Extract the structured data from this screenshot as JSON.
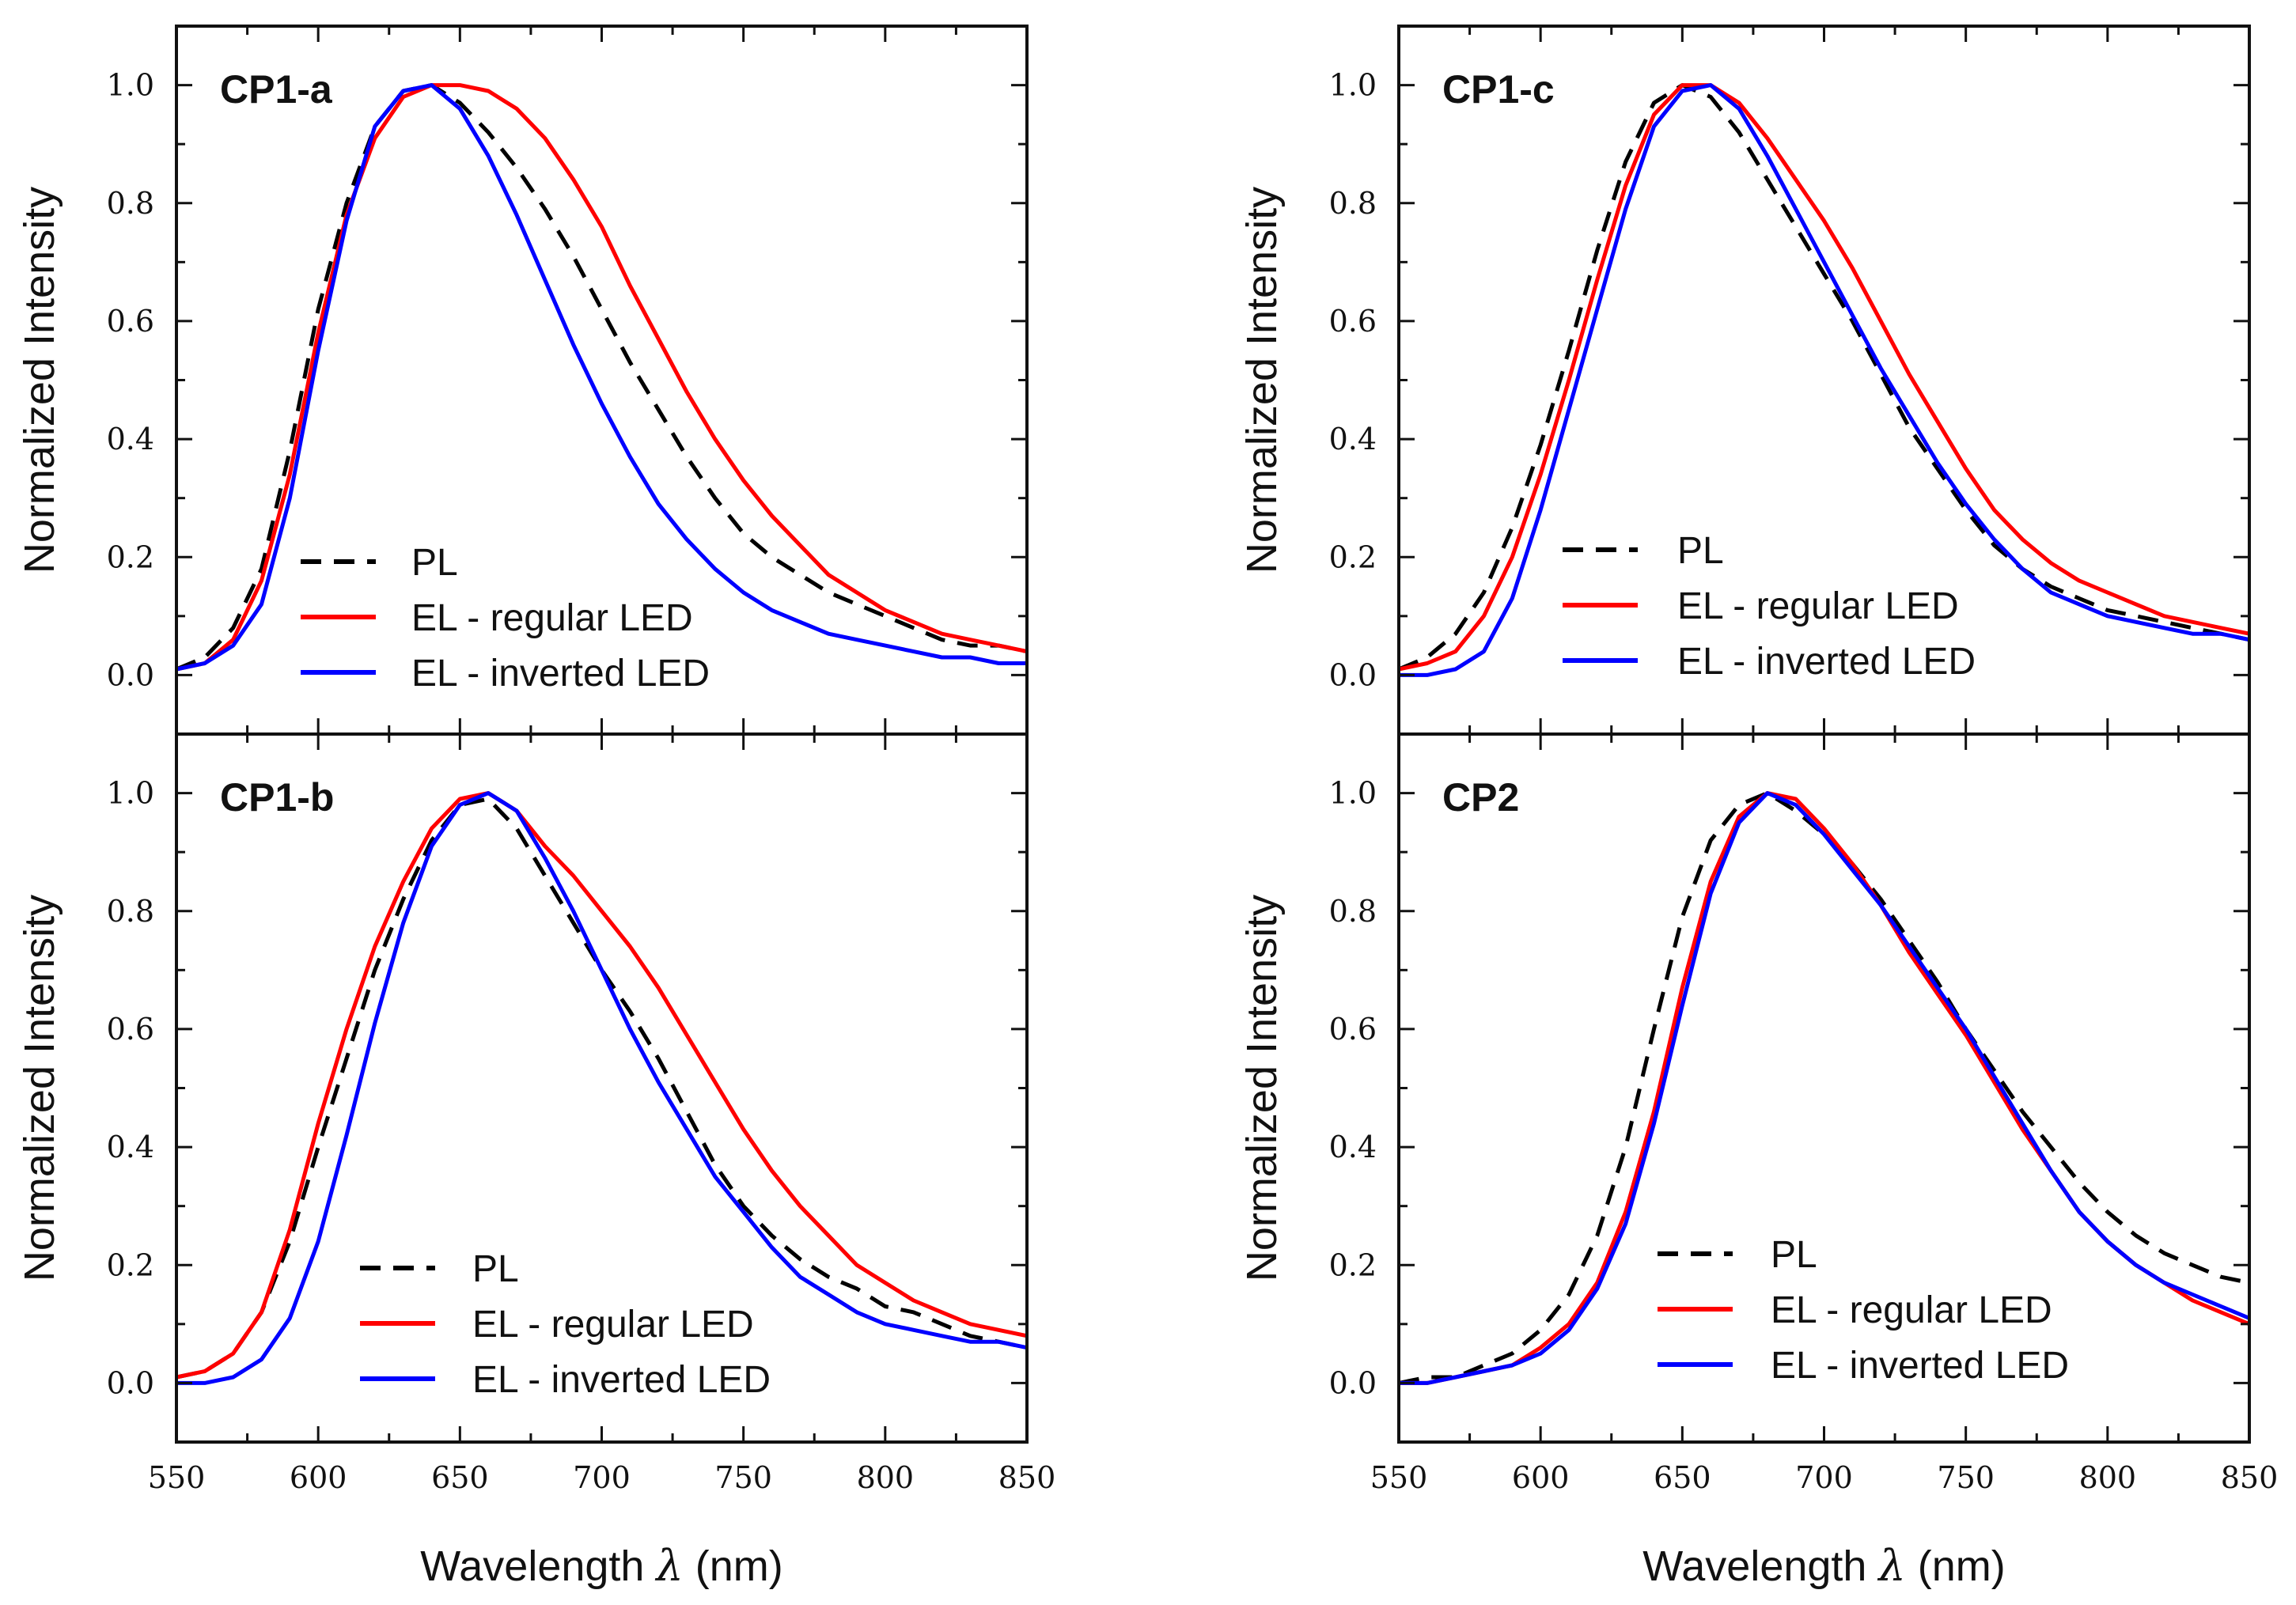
{
  "figure": {
    "x_axis_title_prefix": "Wavelength ",
    "x_axis_symbol": "λ",
    "x_axis_unit": " (nm)",
    "y_axis_title": "Normalized Intensity"
  },
  "chart_data": [
    {
      "type": "line",
      "panel": "CP1-a",
      "title": "CP1-a",
      "xlabel": "Wavelength λ (nm)",
      "ylabel": "Normalized Intensity",
      "xlim": [
        550,
        850
      ],
      "ylim": [
        -0.1,
        1.1
      ],
      "xticks": [
        550,
        600,
        650,
        700,
        750,
        800,
        850
      ],
      "xticklabels": [
        "550",
        "600",
        "650",
        "700",
        "750",
        "800",
        "850"
      ],
      "yticks": [
        0.0,
        0.2,
        0.4,
        0.6,
        0.8,
        1.0
      ],
      "yticklabels": [
        "0.0",
        "0.2",
        "0.4",
        "0.6",
        "0.8",
        "1.0"
      ],
      "legend_position": "lower-center",
      "series": [
        {
          "name": "PL",
          "color": "#000000",
          "dash": "dashed",
          "x": [
            550,
            560,
            570,
            580,
            590,
            600,
            610,
            620,
            630,
            640,
            650,
            660,
            670,
            680,
            690,
            700,
            710,
            720,
            730,
            740,
            750,
            760,
            770,
            780,
            790,
            800,
            810,
            820,
            830,
            840,
            850
          ],
          "y": [
            0.01,
            0.03,
            0.08,
            0.18,
            0.38,
            0.62,
            0.8,
            0.93,
            0.99,
            1.0,
            0.97,
            0.92,
            0.86,
            0.79,
            0.71,
            0.62,
            0.53,
            0.45,
            0.37,
            0.3,
            0.24,
            0.2,
            0.17,
            0.14,
            0.12,
            0.1,
            0.08,
            0.06,
            0.05,
            0.05,
            0.04
          ]
        },
        {
          "name": "EL - regular LED",
          "color": "#ff0000",
          "dash": "solid",
          "x": [
            550,
            560,
            570,
            580,
            590,
            600,
            610,
            620,
            630,
            640,
            650,
            660,
            670,
            680,
            690,
            700,
            710,
            720,
            730,
            740,
            750,
            760,
            770,
            780,
            790,
            800,
            810,
            820,
            830,
            840,
            850
          ],
          "y": [
            0.01,
            0.02,
            0.06,
            0.16,
            0.34,
            0.58,
            0.78,
            0.91,
            0.98,
            1.0,
            1.0,
            0.99,
            0.96,
            0.91,
            0.84,
            0.76,
            0.66,
            0.57,
            0.48,
            0.4,
            0.33,
            0.27,
            0.22,
            0.17,
            0.14,
            0.11,
            0.09,
            0.07,
            0.06,
            0.05,
            0.04
          ]
        },
        {
          "name": "EL - inverted LED",
          "color": "#0000ff",
          "dash": "solid",
          "x": [
            550,
            560,
            570,
            580,
            590,
            600,
            610,
            620,
            630,
            640,
            650,
            660,
            670,
            680,
            690,
            700,
            710,
            720,
            730,
            740,
            750,
            760,
            770,
            780,
            790,
            800,
            810,
            820,
            830,
            840,
            850
          ],
          "y": [
            0.01,
            0.02,
            0.05,
            0.12,
            0.3,
            0.55,
            0.77,
            0.93,
            0.99,
            1.0,
            0.96,
            0.88,
            0.78,
            0.67,
            0.56,
            0.46,
            0.37,
            0.29,
            0.23,
            0.18,
            0.14,
            0.11,
            0.09,
            0.07,
            0.06,
            0.05,
            0.04,
            0.03,
            0.03,
            0.02,
            0.02
          ]
        }
      ]
    },
    {
      "type": "line",
      "panel": "CP1-b",
      "title": "CP1-b",
      "xlabel": "Wavelength λ (nm)",
      "ylabel": "Normalized Intensity",
      "xlim": [
        550,
        850
      ],
      "ylim": [
        -0.1,
        1.1
      ],
      "xticks": [
        550,
        600,
        650,
        700,
        750,
        800,
        850
      ],
      "xticklabels": [
        "550",
        "600",
        "650",
        "700",
        "750",
        "800",
        "850"
      ],
      "yticks": [
        0.0,
        0.2,
        0.4,
        0.6,
        0.8,
        1.0
      ],
      "yticklabels": [
        "0.0",
        "0.2",
        "0.4",
        "0.6",
        "0.8",
        "1.0"
      ],
      "legend_position": "lower-center",
      "series": [
        {
          "name": "PL",
          "color": "#000000",
          "dash": "dashed",
          "x": [
            550,
            560,
            570,
            580,
            590,
            600,
            610,
            620,
            630,
            640,
            650,
            660,
            670,
            680,
            690,
            700,
            710,
            720,
            730,
            740,
            750,
            760,
            770,
            780,
            790,
            800,
            810,
            820,
            830,
            840,
            850
          ],
          "y": [
            0.01,
            0.02,
            0.05,
            0.12,
            0.24,
            0.4,
            0.55,
            0.7,
            0.82,
            0.92,
            0.98,
            0.99,
            0.94,
            0.86,
            0.78,
            0.7,
            0.63,
            0.55,
            0.46,
            0.37,
            0.3,
            0.25,
            0.21,
            0.18,
            0.16,
            0.13,
            0.12,
            0.1,
            0.08,
            0.07,
            0.06
          ]
        },
        {
          "name": "EL - regular LED",
          "color": "#ff0000",
          "dash": "solid",
          "x": [
            550,
            560,
            570,
            580,
            590,
            600,
            610,
            620,
            630,
            640,
            650,
            660,
            670,
            680,
            690,
            700,
            710,
            720,
            730,
            740,
            750,
            760,
            770,
            780,
            790,
            800,
            810,
            820,
            830,
            840,
            850
          ],
          "y": [
            0.01,
            0.02,
            0.05,
            0.12,
            0.26,
            0.44,
            0.6,
            0.74,
            0.85,
            0.94,
            0.99,
            1.0,
            0.97,
            0.91,
            0.86,
            0.8,
            0.74,
            0.67,
            0.59,
            0.51,
            0.43,
            0.36,
            0.3,
            0.25,
            0.2,
            0.17,
            0.14,
            0.12,
            0.1,
            0.09,
            0.08
          ]
        },
        {
          "name": "EL - inverted LED",
          "color": "#0000ff",
          "dash": "solid",
          "x": [
            550,
            560,
            570,
            580,
            590,
            600,
            610,
            620,
            630,
            640,
            650,
            660,
            670,
            680,
            690,
            700,
            710,
            720,
            730,
            740,
            750,
            760,
            770,
            780,
            790,
            800,
            810,
            820,
            830,
            840,
            850
          ],
          "y": [
            0.0,
            0.0,
            0.01,
            0.04,
            0.11,
            0.24,
            0.42,
            0.61,
            0.78,
            0.91,
            0.98,
            1.0,
            0.97,
            0.89,
            0.8,
            0.7,
            0.6,
            0.51,
            0.43,
            0.35,
            0.29,
            0.23,
            0.18,
            0.15,
            0.12,
            0.1,
            0.09,
            0.08,
            0.07,
            0.07,
            0.06
          ]
        }
      ]
    },
    {
      "type": "line",
      "panel": "CP1-c",
      "title": "CP1-c",
      "xlabel": "Wavelength λ (nm)",
      "ylabel": "Normalized Intensity",
      "xlim": [
        550,
        850
      ],
      "ylim": [
        -0.1,
        1.1
      ],
      "xticks": [
        550,
        600,
        650,
        700,
        750,
        800,
        850
      ],
      "xticklabels": [
        "550",
        "600",
        "650",
        "700",
        "750",
        "800",
        "850"
      ],
      "yticks": [
        0.0,
        0.2,
        0.4,
        0.6,
        0.8,
        1.0
      ],
      "yticklabels": [
        "0.0",
        "0.2",
        "0.4",
        "0.6",
        "0.8",
        "1.0"
      ],
      "legend_position": "lower-center",
      "series": [
        {
          "name": "PL",
          "color": "#000000",
          "dash": "dashed",
          "x": [
            550,
            560,
            570,
            580,
            590,
            600,
            610,
            620,
            630,
            640,
            650,
            660,
            670,
            680,
            690,
            700,
            710,
            720,
            730,
            740,
            750,
            760,
            770,
            780,
            790,
            800,
            810,
            820,
            830,
            840,
            850
          ],
          "y": [
            0.01,
            0.03,
            0.07,
            0.14,
            0.25,
            0.39,
            0.55,
            0.72,
            0.87,
            0.97,
            1.0,
            0.98,
            0.92,
            0.84,
            0.76,
            0.68,
            0.6,
            0.51,
            0.42,
            0.35,
            0.28,
            0.22,
            0.18,
            0.15,
            0.13,
            0.11,
            0.1,
            0.09,
            0.08,
            0.07,
            0.06
          ]
        },
        {
          "name": "EL - regular LED",
          "color": "#ff0000",
          "dash": "solid",
          "x": [
            550,
            560,
            570,
            580,
            590,
            600,
            610,
            620,
            630,
            640,
            650,
            660,
            670,
            680,
            690,
            700,
            710,
            720,
            730,
            740,
            750,
            760,
            770,
            780,
            790,
            800,
            810,
            820,
            830,
            840,
            850
          ],
          "y": [
            0.01,
            0.02,
            0.04,
            0.1,
            0.2,
            0.34,
            0.5,
            0.67,
            0.83,
            0.95,
            1.0,
            1.0,
            0.97,
            0.91,
            0.84,
            0.77,
            0.69,
            0.6,
            0.51,
            0.43,
            0.35,
            0.28,
            0.23,
            0.19,
            0.16,
            0.14,
            0.12,
            0.1,
            0.09,
            0.08,
            0.07
          ]
        },
        {
          "name": "EL - inverted LED",
          "color": "#0000ff",
          "dash": "solid",
          "x": [
            550,
            560,
            570,
            580,
            590,
            600,
            610,
            620,
            630,
            640,
            650,
            660,
            670,
            680,
            690,
            700,
            710,
            720,
            730,
            740,
            750,
            760,
            770,
            780,
            790,
            800,
            810,
            820,
            830,
            840,
            850
          ],
          "y": [
            0.0,
            0.0,
            0.01,
            0.04,
            0.13,
            0.28,
            0.45,
            0.62,
            0.79,
            0.93,
            0.99,
            1.0,
            0.96,
            0.88,
            0.79,
            0.7,
            0.61,
            0.52,
            0.44,
            0.36,
            0.29,
            0.23,
            0.18,
            0.14,
            0.12,
            0.1,
            0.09,
            0.08,
            0.07,
            0.07,
            0.06
          ]
        }
      ]
    },
    {
      "type": "line",
      "panel": "CP2",
      "title": "CP2",
      "xlabel": "Wavelength λ (nm)",
      "ylabel": "Normalized Intensity",
      "xlim": [
        550,
        850
      ],
      "ylim": [
        -0.1,
        1.1
      ],
      "xticks": [
        550,
        600,
        650,
        700,
        750,
        800,
        850
      ],
      "xticklabels": [
        "550",
        "600",
        "650",
        "700",
        "750",
        "800",
        "850"
      ],
      "yticks": [
        0.0,
        0.2,
        0.4,
        0.6,
        0.8,
        1.0
      ],
      "yticklabels": [
        "0.0",
        "0.2",
        "0.4",
        "0.6",
        "0.8",
        "1.0"
      ],
      "legend_position": "lower-center",
      "series": [
        {
          "name": "PL",
          "color": "#000000",
          "dash": "dashed",
          "x": [
            550,
            560,
            570,
            580,
            590,
            600,
            610,
            620,
            630,
            640,
            650,
            660,
            670,
            680,
            690,
            700,
            710,
            720,
            730,
            740,
            750,
            760,
            770,
            780,
            790,
            800,
            810,
            820,
            830,
            840,
            850
          ],
          "y": [
            0.0,
            0.01,
            0.01,
            0.03,
            0.05,
            0.09,
            0.15,
            0.25,
            0.4,
            0.6,
            0.79,
            0.92,
            0.98,
            1.0,
            0.97,
            0.93,
            0.88,
            0.82,
            0.75,
            0.68,
            0.6,
            0.53,
            0.46,
            0.4,
            0.34,
            0.29,
            0.25,
            0.22,
            0.2,
            0.18,
            0.17
          ]
        },
        {
          "name": "EL - regular LED",
          "color": "#ff0000",
          "dash": "solid",
          "x": [
            550,
            560,
            570,
            580,
            590,
            600,
            610,
            620,
            630,
            640,
            650,
            660,
            670,
            680,
            690,
            700,
            710,
            720,
            730,
            740,
            750,
            760,
            770,
            780,
            790,
            800,
            810,
            820,
            830,
            840,
            850
          ],
          "y": [
            0.0,
            0.0,
            0.01,
            0.02,
            0.03,
            0.06,
            0.1,
            0.17,
            0.29,
            0.46,
            0.67,
            0.85,
            0.96,
            1.0,
            0.99,
            0.94,
            0.88,
            0.81,
            0.73,
            0.66,
            0.59,
            0.51,
            0.43,
            0.36,
            0.29,
            0.24,
            0.2,
            0.17,
            0.14,
            0.12,
            0.1
          ]
        },
        {
          "name": "EL - inverted LED",
          "color": "#0000ff",
          "dash": "solid",
          "x": [
            550,
            560,
            570,
            580,
            590,
            600,
            610,
            620,
            630,
            640,
            650,
            660,
            670,
            680,
            690,
            700,
            710,
            720,
            730,
            740,
            750,
            760,
            770,
            780,
            790,
            800,
            810,
            820,
            830,
            840,
            850
          ],
          "y": [
            0.0,
            0.0,
            0.01,
            0.02,
            0.03,
            0.05,
            0.09,
            0.16,
            0.27,
            0.44,
            0.64,
            0.83,
            0.95,
            1.0,
            0.98,
            0.93,
            0.87,
            0.81,
            0.74,
            0.67,
            0.6,
            0.52,
            0.44,
            0.36,
            0.29,
            0.24,
            0.2,
            0.17,
            0.15,
            0.13,
            0.11
          ]
        }
      ]
    }
  ]
}
